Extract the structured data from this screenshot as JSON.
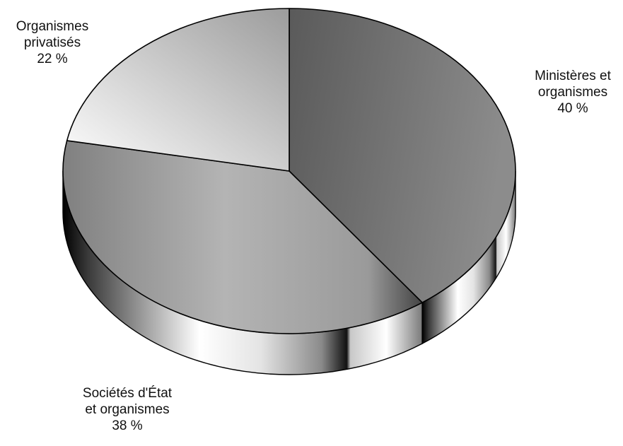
{
  "chart_data": {
    "type": "pie",
    "style": "3d",
    "value_suffix": " %",
    "slices": [
      {
        "label_lines": [
          "Ministères et",
          "organismes"
        ],
        "value": 40,
        "color_top": "#6f6f6f",
        "color_side": "#8a8a8a"
      },
      {
        "label_lines": [
          "Sociétés d'État",
          "et organismes"
        ],
        "value": 38,
        "color_top": "#a9a9a9",
        "color_side": "#bdbdbd"
      },
      {
        "label_lines": [
          "Organismes",
          "privatisés"
        ],
        "value": 22,
        "color_top": "#e3e3e3",
        "color_side": "#cfcfcf"
      }
    ]
  }
}
